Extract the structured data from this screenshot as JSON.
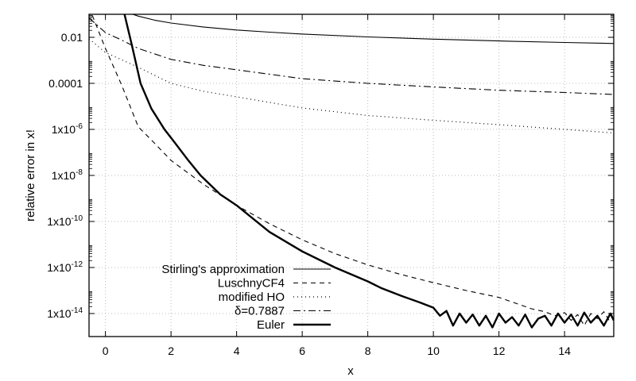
{
  "chart_data": {
    "type": "line",
    "title": "",
    "xlabel": "x",
    "ylabel": "relative error in x!",
    "xscale": "linear",
    "yscale": "log",
    "xlim": [
      -0.5,
      15.5
    ],
    "ylim": [
      1e-15,
      0.1
    ],
    "grid": true,
    "legend_position": "bottom-left",
    "x_ticks": [
      {
        "value": 0,
        "label": "0"
      },
      {
        "value": 2,
        "label": "2"
      },
      {
        "value": 4,
        "label": "4"
      },
      {
        "value": 6,
        "label": "6"
      },
      {
        "value": 8,
        "label": "8"
      },
      {
        "value": 10,
        "label": "10"
      },
      {
        "value": 12,
        "label": "12"
      },
      {
        "value": 14,
        "label": "14"
      }
    ],
    "y_ticks": [
      {
        "value": 0.01,
        "label": "0.01",
        "exp": ""
      },
      {
        "value": 0.0001,
        "label": "0.0001",
        "exp": ""
      },
      {
        "value": 1e-06,
        "label": "1x10",
        "exp": "-6"
      },
      {
        "value": 1e-08,
        "label": "1x10",
        "exp": "-8"
      },
      {
        "value": 1e-10,
        "label": "1x10",
        "exp": "-10"
      },
      {
        "value": 1e-12,
        "label": "1x10",
        "exp": "-12"
      },
      {
        "value": 1e-14,
        "label": "1x10",
        "exp": "-14"
      }
    ],
    "series": [
      {
        "name": "Stirling's approximation",
        "style": "solid",
        "color": "#000000",
        "x": [
          0.58,
          0.8,
          1,
          1.5,
          2,
          3,
          4,
          5,
          6,
          8,
          10,
          12,
          14,
          15.5
        ],
        "y": [
          0.14,
          0.104,
          0.0833,
          0.0556,
          0.0417,
          0.0278,
          0.0208,
          0.0167,
          0.0139,
          0.0104,
          0.00833,
          0.00694,
          0.00595,
          0.00538
        ]
      },
      {
        "name": "LuschnyCF4",
        "style": "dashed",
        "color": "#000000",
        "x": [
          -0.4,
          0,
          0.5,
          1,
          1.5,
          2,
          3,
          4,
          5,
          6,
          7,
          8,
          9,
          10,
          11,
          12,
          13,
          13.4,
          13.7,
          14,
          14.2,
          14.4,
          14.6,
          14.8,
          15,
          15.2,
          15.4
        ],
        "y": [
          0.09,
          0.0033,
          8e-05,
          1.3e-06,
          2.5e-07,
          4.5e-08,
          4e-09,
          5e-10,
          8e-11,
          1.6e-11,
          4e-12,
          1.3e-12,
          5e-13,
          2.2e-13,
          1e-13,
          5e-14,
          1.6e-14,
          1.2e-14,
          8e-15,
          1.1e-14,
          5e-15,
          9e-15,
          3e-15,
          1e-14,
          6e-15,
          1.2e-14,
          4e-15
        ]
      },
      {
        "name": "modified HO",
        "style": "dotted",
        "color": "#000000",
        "x": [
          -0.5,
          0,
          1,
          2,
          3,
          4,
          6,
          8,
          10,
          12,
          14,
          15.5
        ],
        "y": [
          0.0085,
          0.0022,
          0.0005,
          0.0001,
          4.5e-05,
          2.6e-05,
          8.5e-06,
          4e-06,
          2.5e-06,
          1.6e-06,
          1e-06,
          7e-07
        ]
      },
      {
        "name": "δ=0.7887",
        "style": "dashdot",
        "color": "#000000",
        "x": [
          -0.5,
          0,
          0.5,
          1,
          2,
          3,
          4,
          6,
          8,
          10,
          12,
          14,
          15.5
        ],
        "y": [
          0.07,
          0.016,
          0.0075,
          0.0033,
          0.0011,
          0.0006,
          0.00039,
          0.00016,
          0.0001,
          7e-05,
          5e-05,
          4e-05,
          3.3e-05
        ]
      },
      {
        "name": "Euler",
        "style": "thick",
        "color": "#000000",
        "x": [
          0.58,
          0.8,
          1.07,
          1.4,
          1.8,
          2.1,
          2.5,
          2.9,
          3.5,
          4,
          5,
          6,
          7,
          8,
          8.4,
          9,
          9.6,
          10,
          10.2,
          10.4,
          10.6,
          10.8,
          11,
          11.2,
          11.4,
          11.6,
          11.8,
          12,
          12.2,
          12.4,
          12.6,
          12.8,
          13,
          13.2,
          13.4,
          13.6,
          13.8,
          14,
          14.2,
          14.4,
          14.6,
          14.8,
          15,
          15.2,
          15.4,
          15.5
        ],
        "y": [
          0.1,
          0.005,
          0.0001,
          8e-06,
          1e-06,
          2.8e-07,
          5e-08,
          1e-08,
          1.5e-09,
          5e-10,
          3.5e-11,
          5e-12,
          1e-12,
          2.5e-13,
          1.3e-13,
          6e-14,
          3e-14,
          1.8e-14,
          8e-15,
          1.3e-14,
          3e-15,
          1e-14,
          4e-15,
          9e-15,
          3e-15,
          8e-15,
          2.5e-15,
          1e-14,
          4e-15,
          7e-15,
          3e-15,
          9e-15,
          2.5e-15,
          6e-15,
          8e-15,
          3e-15,
          1e-14,
          4e-15,
          9e-15,
          3e-15,
          1.1e-14,
          4e-15,
          8e-15,
          3e-15,
          1e-14,
          5e-15
        ]
      }
    ]
  }
}
